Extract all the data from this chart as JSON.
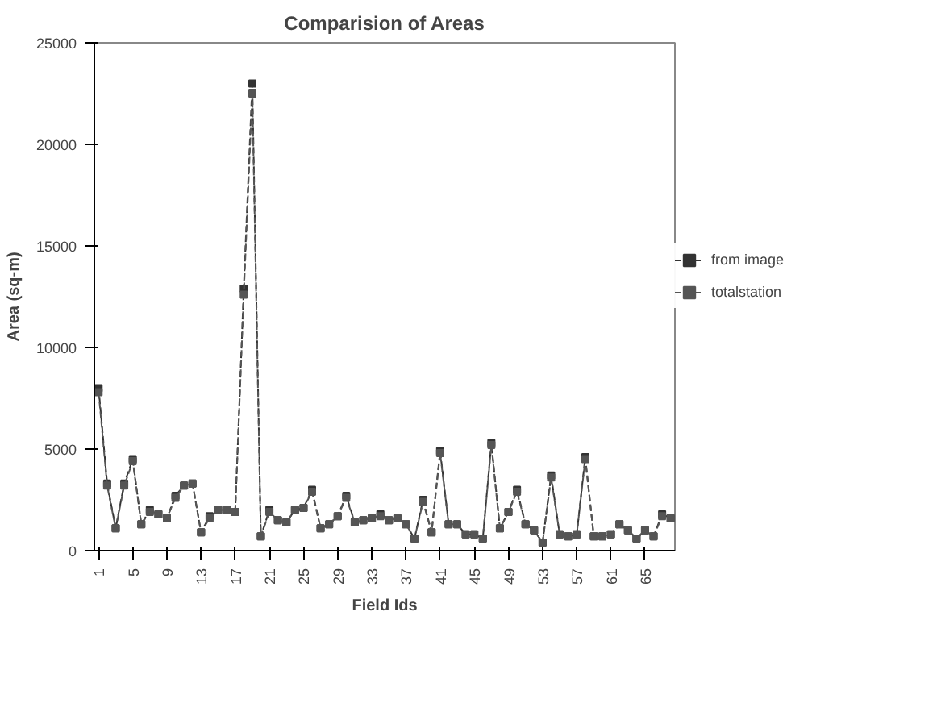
{
  "chart_data": {
    "type": "line",
    "title": "Comparision of Areas",
    "xlabel": "Field Ids",
    "ylabel": "Area (sq-m)",
    "x": [
      1,
      2,
      3,
      4,
      5,
      6,
      7,
      8,
      9,
      10,
      11,
      12,
      13,
      14,
      15,
      16,
      17,
      18,
      19,
      20,
      21,
      22,
      23,
      24,
      25,
      26,
      27,
      28,
      29,
      30,
      31,
      32,
      33,
      34,
      35,
      36,
      37,
      38,
      39,
      40,
      41,
      42,
      43,
      44,
      45,
      46,
      47,
      48,
      49,
      50,
      51,
      52,
      53,
      54,
      55,
      56,
      57,
      58,
      59,
      60,
      61,
      62,
      63,
      64,
      65,
      66,
      67,
      68
    ],
    "series": [
      {
        "name": "from image",
        "color": "#333333",
        "values": [
          8000,
          3300,
          1100,
          3300,
          4500,
          1300,
          2000,
          1800,
          1600,
          2700,
          3200,
          3300,
          900,
          1700,
          2000,
          2000,
          1900,
          12900,
          23000,
          700,
          2000,
          1500,
          1400,
          2000,
          2100,
          3000,
          1100,
          1300,
          1700,
          2700,
          1400,
          1500,
          1600,
          1800,
          1500,
          1600,
          1300,
          600,
          2500,
          900,
          4900,
          1300,
          1300,
          800,
          800,
          600,
          5300,
          1100,
          1900,
          3000,
          1300,
          1000,
          400,
          3700,
          800,
          700,
          800,
          4600,
          700,
          700,
          800,
          1300,
          1000,
          600,
          1000,
          700,
          1800,
          1600
        ]
      },
      {
        "name": "totalstation",
        "color": "#555555",
        "values": [
          7800,
          3200,
          1100,
          3200,
          4400,
          1300,
          1900,
          1800,
          1600,
          2600,
          3200,
          3300,
          900,
          1600,
          2000,
          2000,
          1900,
          12600,
          22500,
          700,
          1900,
          1500,
          1400,
          2000,
          2100,
          2900,
          1100,
          1300,
          1700,
          2600,
          1400,
          1500,
          1600,
          1700,
          1500,
          1600,
          1300,
          600,
          2400,
          900,
          4800,
          1300,
          1300,
          800,
          800,
          600,
          5200,
          1100,
          1900,
          2900,
          1300,
          1000,
          400,
          3600,
          800,
          700,
          800,
          4500,
          700,
          700,
          800,
          1300,
          1000,
          600,
          1000,
          700,
          1700,
          1600
        ]
      }
    ],
    "xlim": [
      0.5,
      68.5
    ],
    "xticks": [
      1,
      5,
      9,
      13,
      17,
      21,
      25,
      29,
      33,
      37,
      41,
      45,
      49,
      53,
      57,
      61,
      65
    ],
    "ylim": [
      0,
      25000
    ],
    "yticks": [
      0,
      5000,
      10000,
      15000,
      20000,
      25000
    ],
    "grid": false,
    "legend": "right",
    "marker": "square",
    "line_style": "dashed"
  }
}
